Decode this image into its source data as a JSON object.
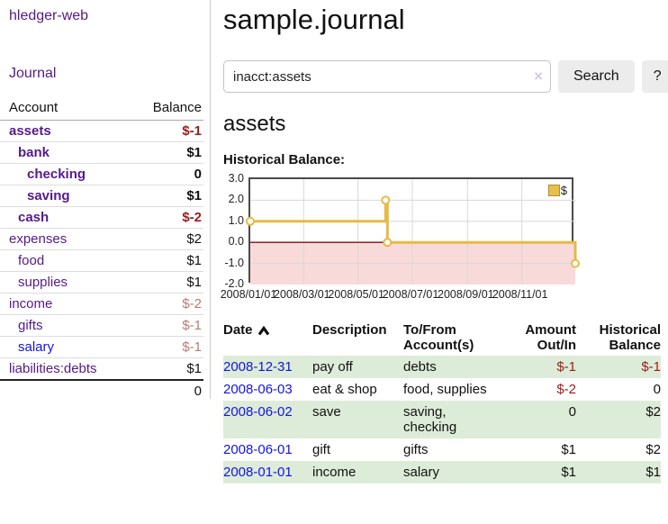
{
  "app": {
    "brand": "hledger-web",
    "nav": {
      "journal": "Journal"
    }
  },
  "colors": {
    "purple_link": "#551a8b",
    "blue_link": "#1414e0",
    "negative_strong": "#9d1a1a",
    "negative_muted": "#b87a7a",
    "row_green": "#ddecd8",
    "accent_gold": "#e6ba45"
  },
  "sidebar": {
    "headers": {
      "account": "Account",
      "balance": "Balance"
    },
    "rows": [
      {
        "account": "assets",
        "balance": "$-1"
      },
      {
        "account": "bank",
        "balance": "$1"
      },
      {
        "account": "checking",
        "balance": "0"
      },
      {
        "account": "saving",
        "balance": "$1"
      },
      {
        "account": "cash",
        "balance": "$-2"
      },
      {
        "account": "expenses",
        "balance": "$2"
      },
      {
        "account": "food",
        "balance": "$1"
      },
      {
        "account": "supplies",
        "balance": "$1"
      },
      {
        "account": "income",
        "balance": "$-2"
      },
      {
        "account": "gifts",
        "balance": "$-1"
      },
      {
        "account": "salary",
        "balance": "$-1"
      },
      {
        "account": "liabilities:debts",
        "balance": "$1"
      }
    ],
    "total": "0"
  },
  "main": {
    "title": "sample.journal",
    "search": {
      "value": "inacct:assets",
      "clear_icon": "×",
      "search_button": "Search",
      "help_button": "?"
    },
    "account_heading": "assets",
    "chart_heading": "Historical Balance:"
  },
  "chart_data": {
    "type": "line",
    "step": true,
    "title": "Historical Balance:",
    "series": [
      {
        "name": "$",
        "color": "#e6ba45",
        "points": [
          [
            "2008/01/01",
            1.0
          ],
          [
            "2008/06/01",
            2.0
          ],
          [
            "2008/06/03",
            0.0
          ],
          [
            "2008/12/31",
            -1.0
          ]
        ]
      }
    ],
    "x_range": [
      "2008/01/01",
      "2008/12/31"
    ],
    "x_ticks": [
      "2008/01/01",
      "2008/03/01",
      "2008/05/01",
      "2008/07/01",
      "2008/09/01",
      "2008/11/01"
    ],
    "y_ticks": [
      3.0,
      2.0,
      1.0,
      0.0,
      -1.0,
      -2.0
    ],
    "ylim": [
      -2.0,
      3.0
    ],
    "grid": true,
    "legend": {
      "position": "top-right",
      "entries": [
        "$"
      ]
    },
    "colors": {
      "line": "#e6ba45",
      "marker_fill": "#ffffff",
      "negative_region": "#f9dada",
      "zero_line": "#7a0f0f",
      "gridline": "#d8d8d8"
    }
  },
  "register": {
    "headers": {
      "date": "Date",
      "description": "Description",
      "accounts": "To/From Account(s)",
      "amount": "Amount Out/In",
      "balance": "Historical Balance"
    },
    "rows": [
      {
        "date": "2008-12-31",
        "description": "pay off",
        "accounts": "debts",
        "amount": "$-1",
        "balance": "$-1"
      },
      {
        "date": "2008-06-03",
        "description": "eat & shop",
        "accounts": "food, supplies",
        "amount": "$-2",
        "balance": "0"
      },
      {
        "date": "2008-06-02",
        "description": "save",
        "accounts": "saving, checking",
        "amount": "0",
        "balance": "$2"
      },
      {
        "date": "2008-06-01",
        "description": "gift",
        "accounts": "gifts",
        "amount": "$1",
        "balance": "$2"
      },
      {
        "date": "2008-01-01",
        "description": "income",
        "accounts": "salary",
        "amount": "$1",
        "balance": "$1"
      }
    ]
  }
}
